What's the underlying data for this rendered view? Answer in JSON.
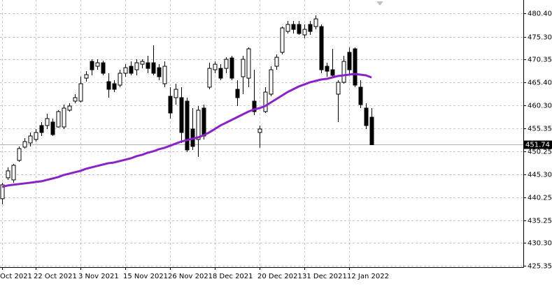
{
  "chart_data": {
    "type": "candlestick",
    "categories": [
      "Oct 2021",
      null,
      null,
      null,
      null,
      null,
      "22 Oct 2021",
      null,
      null,
      null,
      null,
      null,
      null,
      null,
      "3 Nov 2021",
      null,
      null,
      null,
      null,
      null,
      null,
      null,
      "15 Nov 2021",
      null,
      null,
      null,
      null,
      null,
      null,
      null,
      "26 Nov 2021",
      null,
      null,
      null,
      null,
      null,
      null,
      null,
      "8 Dec 2021",
      null,
      null,
      null,
      null,
      null,
      null,
      null,
      "20 Dec 2021",
      null,
      null,
      null,
      null,
      null,
      null,
      null,
      "31 Dec 2021",
      null,
      null,
      null,
      null,
      null,
      null,
      null,
      "12 Jan 2022",
      null,
      null,
      null,
      null
    ],
    "open": [
      439.97,
      444.53,
      444.07,
      448.33,
      451.22,
      452.13,
      452.89,
      455.93,
      455.93,
      456.69,
      455.62,
      455.62,
      459.27,
      461.25,
      461.25,
      466.26,
      469.91,
      468.85,
      469.61,
      465.5,
      465.05,
      464.74,
      467.33,
      468.85,
      468.09,
      469.3,
      469.61,
      469.61,
      468.54,
      465.05,
      462.31,
      462.01,
      462.01,
      461.25,
      455.17,
      452.89,
      459.73,
      464.29,
      468.09,
      468.39,
      468.39,
      470.67,
      463.83,
      466.57,
      466.26,
      461.25,
      454.41,
      458.97,
      462.77,
      468.85,
      471.89,
      476.45,
      477.97,
      477.97,
      475.69,
      477.97,
      477.51,
      477.51,
      468.85,
      468.09,
      462.77,
      465.35,
      471.89,
      472.65,
      464.29,
      459.73,
      457.75
    ],
    "high": [
      443.46,
      446.81,
      447.57,
      451.37,
      453.19,
      454.41,
      455.17,
      456.69,
      458.51,
      457.45,
      459.27,
      460.49,
      460.79,
      462.77,
      466.57,
      467.78,
      470.37,
      470.37,
      470.06,
      467.33,
      465.81,
      468.09,
      469.3,
      469.91,
      470.37,
      470.37,
      471.13,
      473.41,
      469.3,
      469.91,
      464.29,
      465.05,
      464.29,
      462.01,
      459.73,
      460.18,
      460.49,
      469.61,
      469.91,
      469.3,
      470.82,
      471.13,
      465.81,
      471.13,
      472.95,
      468.09,
      455.93,
      464.29,
      468.85,
      471.43,
      477.51,
      478.73,
      478.73,
      478.73,
      477.97,
      478.73,
      479.94,
      477.97,
      469.61,
      472.65,
      465.81,
      471.13,
      472.95,
      472.95,
      465.81,
      460.79,
      459.73
    ],
    "low": [
      438.75,
      444.07,
      443.46,
      448.02,
      450.91,
      451.37,
      452.43,
      453.65,
      455.17,
      453.65,
      455.47,
      455.17,
      458.97,
      460.79,
      460.94,
      465.5,
      466.87,
      468.09,
      466.87,
      462.01,
      463.22,
      464.29,
      466.57,
      466.87,
      466.87,
      468.39,
      467.33,
      466.87,
      465.81,
      464.29,
      457.45,
      460.49,
      452.13,
      450.15,
      450.61,
      449.09,
      452.89,
      463.83,
      467.33,
      465.81,
      467.33,
      465.81,
      460.18,
      462.77,
      464.29,
      458.21,
      451.07,
      458.66,
      462.31,
      468.09,
      471.43,
      475.99,
      475.99,
      475.69,
      474.93,
      475.69,
      476.9,
      467.33,
      466.57,
      466.26,
      456.69,
      465.05,
      466.87,
      464.29,
      459.73,
      455.17,
      451.67
    ],
    "close": [
      443.01,
      446.05,
      447.26,
      450.91,
      452.43,
      453.65,
      454.41,
      454.41,
      457.45,
      453.95,
      458.97,
      459.73,
      460.18,
      462.01,
      465.05,
      467.02,
      468.09,
      469.61,
      467.33,
      463.83,
      463.83,
      467.33,
      468.54,
      467.33,
      469.61,
      469.91,
      468.39,
      467.33,
      466.57,
      468.85,
      458.66,
      463.83,
      454.41,
      450.61,
      451.37,
      459.27,
      453.65,
      468.39,
      469.3,
      466.26,
      470.37,
      466.26,
      462.01,
      470.37,
      472.65,
      458.97,
      455.17,
      463.22,
      468.09,
      470.82,
      477.21,
      477.97,
      476.9,
      475.99,
      476.9,
      476.45,
      479.18,
      468.09,
      467.78,
      466.87,
      465.35,
      469.91,
      468.09,
      464.74,
      460.49,
      455.93,
      451.74
    ],
    "up_color": "#ffffff",
    "down_color": "#000000",
    "overlay": {
      "type": "line",
      "color": "#8a22c8",
      "values": [
        442.55,
        442.86,
        443.01,
        443.16,
        443.31,
        443.46,
        443.62,
        443.77,
        444.07,
        444.38,
        444.68,
        445.14,
        445.44,
        445.74,
        446.05,
        446.5,
        446.81,
        447.11,
        447.42,
        447.72,
        447.87,
        448.18,
        448.48,
        448.78,
        449.24,
        449.54,
        450.0,
        450.3,
        450.76,
        451.07,
        451.52,
        451.98,
        452.43,
        452.74,
        453.04,
        453.34,
        453.8,
        454.41,
        455.17,
        455.93,
        456.54,
        457.14,
        457.75,
        458.36,
        458.97,
        459.42,
        459.73,
        460.18,
        460.94,
        461.7,
        462.46,
        463.22,
        463.83,
        464.44,
        464.89,
        465.35,
        465.66,
        465.96,
        466.11,
        466.42,
        466.73,
        466.87,
        467.02,
        467.18,
        467.02,
        466.87,
        466.42
      ]
    },
    "last_price": 451.74,
    "ylim": [
      425.05,
      483.3
    ],
    "yticks": [
      {
        "value": 480.4,
        "label": "480.40"
      },
      {
        "value": 475.3,
        "label": "475.30"
      },
      470.35,
      {
        "value": 465.4,
        "label": "465.40"
      },
      {
        "value": 460.3,
        "label": "460.30"
      },
      455.35,
      450.25,
      {
        "value": 445.3,
        "label": "445.30"
      },
      440.25,
      435.25,
      {
        "value": 430.3,
        "label": "430.30"
      },
      425.35
    ],
    "grid": true
  }
}
